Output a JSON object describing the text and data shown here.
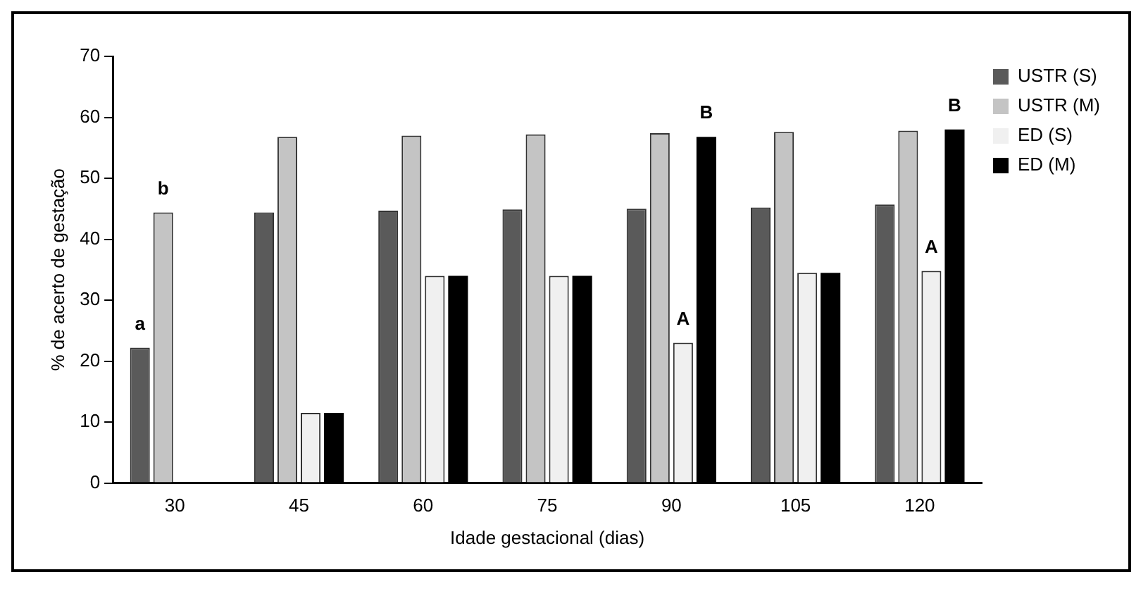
{
  "chart_data": {
    "type": "bar",
    "xlabel": "Idade gestacional (dias)",
    "ylabel": "% de acerto de gestação",
    "categories": [
      "30",
      "45",
      "60",
      "75",
      "90",
      "105",
      "120"
    ],
    "series": [
      {
        "name": "USTR (S)",
        "color": "#5a5a5a",
        "values": [
          22.2,
          44.4,
          44.7,
          44.9,
          45,
          45.2,
          45.7
        ]
      },
      {
        "name": "USTR (M)",
        "color": "#c4c4c4",
        "values": [
          44.4,
          56.8,
          57,
          57.2,
          57.4,
          57.6,
          57.8
        ]
      },
      {
        "name": "ED (S)",
        "color": "#f0f0f0",
        "values": [
          0,
          11.5,
          34,
          34,
          23,
          34.5,
          34.8
        ]
      },
      {
        "name": "ED (M)",
        "color": "#000000",
        "values": [
          0,
          11.5,
          34,
          34,
          56.8,
          34.5,
          58
        ]
      }
    ],
    "ylim": [
      0,
      70
    ],
    "yticks": [
      0,
      10,
      20,
      30,
      40,
      50,
      60,
      70
    ],
    "grid": false,
    "legend": "right",
    "annotations": [
      {
        "text": "a",
        "x": "30",
        "y": 22.2
      },
      {
        "text": "b",
        "x": "30",
        "y": 44.4
      },
      {
        "text": "A",
        "x": "90",
        "y": 23
      },
      {
        "text": "B",
        "x": "90",
        "y": 56.8
      },
      {
        "text": "A",
        "x": "120",
        "y": 34.8
      },
      {
        "text": "B",
        "x": "120",
        "y": 58
      }
    ]
  }
}
